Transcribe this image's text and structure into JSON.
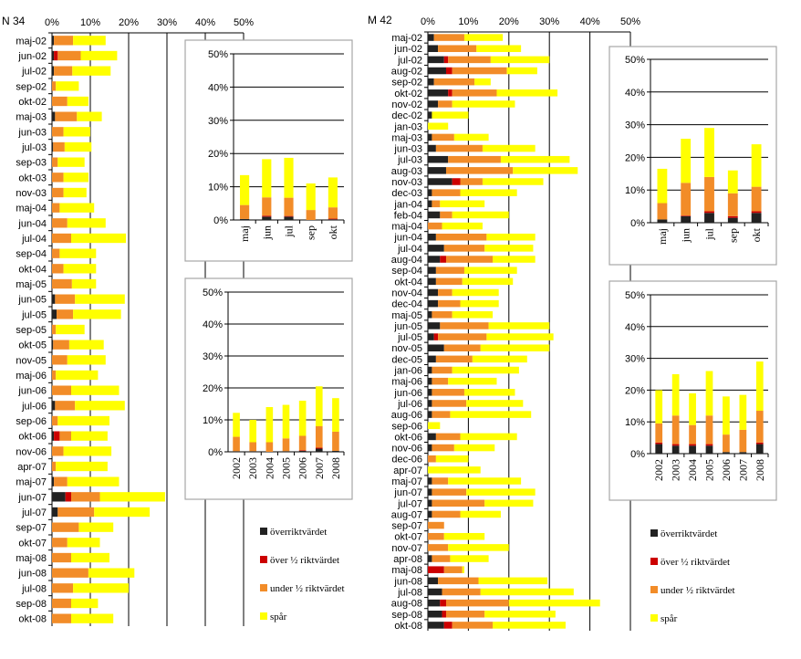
{
  "colors": {
    "over_limit": "#222222",
    "over_half": "#cc0000",
    "under_half": "#f28c28",
    "trace": "#ffff00",
    "inset_border": "#a6a6a6",
    "axis": "#000000"
  },
  "chart_data": [
    {
      "id": "n34_main",
      "type": "bar",
      "orientation": "horizontal",
      "stacked": true,
      "title": "N 34",
      "xlim": [
        0,
        50
      ],
      "xticks": [
        "0%",
        "10%",
        "20%",
        "30%",
        "40%",
        "50%"
      ],
      "categories": [
        "maj-02",
        "jun-02",
        "jul-02",
        "sep-02",
        "okt-02",
        "maj-03",
        "jun-03",
        "jul-03",
        "sep-03",
        "okt-03",
        "nov-03",
        "maj-04",
        "jun-04",
        "jul-04",
        "sep-04",
        "okt-04",
        "maj-05",
        "jun-05",
        "jul-05",
        "sep-05",
        "okt-05",
        "nov-05",
        "maj-06",
        "jun-06",
        "jul-06",
        "sep-06",
        "okt-06",
        "nov-06",
        "apr-07",
        "maj-07",
        "jun-07",
        "jul-07",
        "sep-07",
        "okt-07",
        "maj-08",
        "jun-08",
        "jul-08",
        "sep-08",
        "okt-08"
      ],
      "series": [
        {
          "name": "över riktvärdet",
          "values": [
            0.5,
            0.5,
            0.5,
            0,
            0,
            0.8,
            0,
            0.3,
            0,
            0,
            0,
            0,
            0,
            0,
            0,
            0,
            0,
            0.8,
            1.2,
            0,
            0.3,
            0,
            0,
            0,
            0.8,
            0,
            0.5,
            0,
            0,
            0.5,
            3.5,
            1.5,
            0,
            0,
            0,
            0,
            0,
            0,
            0
          ]
        },
        {
          "name": "över ½ riktvärdet",
          "values": [
            0,
            1,
            0,
            0,
            0,
            0,
            0,
            0,
            0,
            0,
            0,
            0,
            0,
            0,
            0,
            0,
            0,
            0,
            0,
            0,
            0,
            0,
            0,
            0,
            0,
            0,
            1.5,
            0,
            0,
            0,
            1.5,
            0,
            0,
            0,
            0,
            0,
            0,
            0,
            0
          ]
        },
        {
          "name": "under ½ riktvärdet",
          "values": [
            5,
            6,
            4.8,
            1,
            4,
            5.7,
            3,
            3,
            1.5,
            3,
            3,
            2,
            4,
            5,
            2,
            3,
            5.2,
            5.2,
            4.3,
            1,
            4.2,
            4,
            1,
            5,
            5.2,
            1.5,
            3,
            3,
            1,
            3.5,
            7.5,
            9.5,
            7,
            4,
            5,
            9.5,
            5.5,
            5,
            5
          ]
        },
        {
          "name": "spår",
          "values": [
            8.5,
            9.5,
            10,
            6,
            5.5,
            6.5,
            7,
            7,
            7,
            6.5,
            6,
            9,
            10,
            14.3,
            9.5,
            8.5,
            6.3,
            13,
            12.5,
            7.5,
            9,
            10,
            11,
            12.5,
            13,
            13.5,
            9.5,
            12.5,
            13.5,
            13.5,
            17,
            14.5,
            9,
            8.5,
            10,
            12,
            14.5,
            7,
            11
          ]
        }
      ],
      "legend": "bottom-right"
    },
    {
      "id": "n34_inset_month",
      "type": "bar",
      "stacked": true,
      "ylim": [
        0,
        50
      ],
      "yticks": [
        "0%",
        "10%",
        "20%",
        "30%",
        "40%",
        "50%"
      ],
      "categories": [
        "maj",
        "jun",
        "jul",
        "sep",
        "okt"
      ],
      "series": [
        {
          "name": "över riktvärdet",
          "values": [
            0.3,
            1,
            1,
            0,
            0.2
          ]
        },
        {
          "name": "över ½ riktvärdet",
          "values": [
            0,
            0.3,
            0.2,
            0,
            0.2
          ]
        },
        {
          "name": "under ½ riktvärdet",
          "values": [
            4.2,
            5.5,
            5.5,
            3,
            3.4
          ]
        },
        {
          "name": "spår",
          "values": [
            9,
            11.5,
            12,
            8,
            9
          ]
        }
      ]
    },
    {
      "id": "n34_inset_year",
      "type": "bar",
      "stacked": true,
      "ylim": [
        0,
        50
      ],
      "yticks": [
        "0%",
        "10%",
        "20%",
        "30%",
        "40%",
        "50%"
      ],
      "categories": [
        "2002",
        "2003",
        "2004",
        "2005",
        "2006",
        "2007",
        "2008"
      ],
      "series": [
        {
          "name": "över riktvärdet",
          "values": [
            0.2,
            0.2,
            0,
            0.2,
            0.3,
            1,
            0.3
          ]
        },
        {
          "name": "över ½ riktvärdet",
          "values": [
            0,
            0,
            0,
            0,
            0.2,
            0.3,
            0
          ]
        },
        {
          "name": "under ½ riktvärdet",
          "values": [
            4.5,
            2.8,
            3,
            4,
            4.5,
            6.7,
            6
          ]
        },
        {
          "name": "spår",
          "values": [
            7.5,
            7,
            11,
            10.5,
            11,
            12.5,
            10.5
          ]
        }
      ]
    },
    {
      "id": "m42_main",
      "type": "bar",
      "orientation": "horizontal",
      "stacked": true,
      "title": "M 42",
      "xlim": [
        0,
        50
      ],
      "xticks": [
        "0%",
        "10%",
        "20%",
        "30%",
        "40%",
        "50%"
      ],
      "categories": [
        "maj-02",
        "jun-02",
        "jul-02",
        "aug-02",
        "sep-02",
        "okt-02",
        "nov-02",
        "dec-02",
        "jan-03",
        "maj-03",
        "jun-03",
        "jul-03",
        "aug-03",
        "nov-03",
        "dec-03",
        "jan-04",
        "feb-04",
        "maj-04",
        "jun-04",
        "jul-04",
        "aug-04",
        "sep-04",
        "okt-04",
        "nov-04",
        "dec-04",
        "maj-05",
        "jun-05",
        "jul-05",
        "nov-05",
        "dec-05",
        "jan-06",
        "maj-06",
        "jun-06",
        "jul-06",
        "aug-06",
        "sep-06",
        "okt-06",
        "nov-06",
        "dec-06",
        "apr-07",
        "maj-07",
        "jun-07",
        "jul-07",
        "aug-07",
        "sep-07",
        "okt-07",
        "nov-07",
        "apr-08",
        "maj-08",
        "jun-08",
        "jul-08",
        "aug-08",
        "sep-08",
        "okt-08"
      ],
      "series": [
        {
          "name": "över riktvärdet",
          "values": [
            1.5,
            2.5,
            4,
            4.5,
            1.5,
            5,
            2.5,
            1,
            0,
            1,
            2,
            5,
            4.5,
            6,
            1,
            1,
            3,
            0,
            2,
            4,
            3,
            2,
            2,
            2.5,
            2.5,
            1,
            3,
            1.5,
            4,
            2,
            1,
            1,
            1,
            1,
            1,
            0,
            2,
            1,
            0,
            0,
            1,
            1,
            1,
            1,
            0,
            0,
            0,
            1,
            0,
            2.5,
            3.5,
            3,
            3.5,
            4
          ]
        },
        {
          "name": "över ½ riktvärdet",
          "values": [
            0,
            0,
            1,
            1.5,
            0,
            1,
            0,
            0,
            0,
            0,
            0,
            0,
            0,
            2,
            0,
            0,
            0,
            0,
            0,
            0,
            1.5,
            0,
            0,
            0,
            0,
            0,
            0,
            1,
            0,
            0,
            0,
            0,
            0,
            0,
            0,
            0,
            0,
            0,
            0,
            0,
            0,
            0,
            0,
            0,
            0,
            0,
            0,
            0,
            4,
            0,
            0,
            1.5,
            1,
            2
          ]
        },
        {
          "name": "under ½ riktvärdet",
          "values": [
            7.5,
            9.5,
            10.5,
            13.5,
            10,
            11,
            3.5,
            0,
            0,
            5.5,
            11.5,
            13,
            16.5,
            5.5,
            7,
            2,
            3,
            3.5,
            12.5,
            10,
            11.5,
            7,
            6.5,
            3.5,
            5.5,
            5,
            12,
            12,
            9,
            9,
            5,
            4,
            8,
            8.5,
            4.5,
            0,
            6,
            5.5,
            2,
            0,
            4,
            8.5,
            13,
            7,
            4,
            4,
            5,
            4.5,
            4.5,
            10,
            9.5,
            15.5,
            9.5,
            10
          ]
        },
        {
          "name": "spår",
          "values": [
            9.5,
            11,
            14.5,
            7.5,
            4,
            15,
            15.5,
            9,
            5,
            8.5,
            13,
            17,
            16,
            15,
            14,
            11,
            14,
            10,
            12,
            12,
            10.5,
            13,
            12.5,
            11.5,
            9.5,
            10,
            15,
            16.5,
            17,
            13.5,
            16.5,
            12,
            12.5,
            14,
            20,
            3,
            14,
            10,
            8,
            13,
            18,
            17,
            12,
            10,
            0,
            10,
            15,
            9.5,
            0.5,
            17,
            23,
            22.5,
            17.5,
            18
          ]
        }
      ],
      "legend": "bottom-right"
    },
    {
      "id": "m42_inset_month",
      "type": "bar",
      "stacked": true,
      "ylim": [
        0,
        50
      ],
      "yticks": [
        "0%",
        "10%",
        "20%",
        "30%",
        "40%",
        "50%"
      ],
      "categories": [
        "maj",
        "jun",
        "jul",
        "sep",
        "okt"
      ],
      "series": [
        {
          "name": "över riktvärdet",
          "values": [
            1,
            2,
            3,
            1.5,
            3
          ]
        },
        {
          "name": "över ½ riktvärdet",
          "values": [
            0,
            0.2,
            0.5,
            0.5,
            0.5
          ]
        },
        {
          "name": "under ½ riktvärdet",
          "values": [
            5,
            10,
            10.5,
            7,
            7.5
          ]
        },
        {
          "name": "spår",
          "values": [
            10.5,
            13.5,
            15,
            7,
            13
          ]
        }
      ]
    },
    {
      "id": "m42_inset_year",
      "type": "bar",
      "stacked": true,
      "ylim": [
        0,
        50
      ],
      "yticks": [
        "0%",
        "10%",
        "20%",
        "30%",
        "40%",
        "50%"
      ],
      "categories": [
        "2002",
        "2003",
        "2004",
        "2005",
        "2006",
        "2007",
        "2008"
      ],
      "series": [
        {
          "name": "över riktvärdet",
          "values": [
            3,
            2.5,
            2.5,
            2.5,
            0.5,
            0.5,
            3
          ]
        },
        {
          "name": "över ½ riktvärdet",
          "values": [
            0.5,
            0.5,
            0.5,
            0.5,
            0,
            0,
            0.5
          ]
        },
        {
          "name": "under ½ riktvärdet",
          "values": [
            6,
            9,
            6,
            9,
            5.5,
            7,
            10
          ]
        },
        {
          "name": "spår",
          "values": [
            10.5,
            13,
            10,
            14,
            12,
            11,
            15.5
          ]
        }
      ]
    }
  ],
  "legend": {
    "items": [
      {
        "label": "överriktvärdet",
        "color_key": "over_limit"
      },
      {
        "label": "över ½ riktvärdet",
        "color_key": "over_half"
      },
      {
        "label": "under ½ riktvärdet",
        "color_key": "under_half"
      },
      {
        "label": "spår",
        "color_key": "trace"
      }
    ]
  }
}
